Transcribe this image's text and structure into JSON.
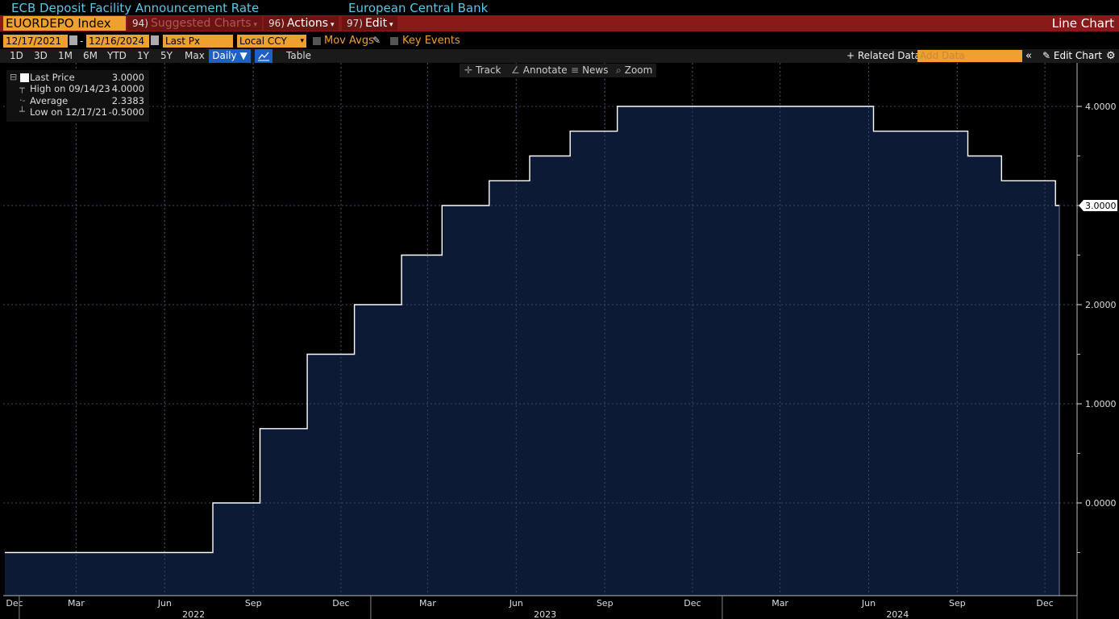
{
  "header": {
    "title": "ECB Deposit Facility Announcement Rate",
    "issuer": "European Central Bank"
  },
  "command_bar": {
    "ticker": "EUORDEPO Index",
    "suggested_num": "94)",
    "suggested_label": "Suggested Charts",
    "actions_num": "96)",
    "actions_label": "Actions",
    "edit_num": "97)",
    "edit_label": "Edit",
    "chart_type": "Line Chart",
    "colors": {
      "bar": "#8a1a1a",
      "accent": "#f0a030",
      "title": "#5cc6e6"
    }
  },
  "options": {
    "start_date": "12/17/2021",
    "end_date": "12/16/2024",
    "dash": "-",
    "field": "Last Px",
    "currency": "Local CCY",
    "mov_avgs": "Mov Avgs",
    "key_events": "Key Events"
  },
  "range_bar": {
    "ranges": [
      "1D",
      "3D",
      "1M",
      "6M",
      "YTD",
      "1Y",
      "5Y",
      "Max"
    ],
    "frequency": "Daily ▼",
    "table": "Table",
    "related": "+ Related Data",
    "add_data_placeholder": "Add Data",
    "collapse": "«",
    "edit_chart": "Edit Chart",
    "gear": "⚙"
  },
  "chart_toolbar": {
    "track": "Track",
    "annotate": "Annotate",
    "news": "News",
    "zoom": "Zoom"
  },
  "legend": {
    "last_price_label": "Last Price",
    "last_price_value": "3.0000",
    "high_label": "High on 09/14/23",
    "high_value": "4.0000",
    "average_label": "Average",
    "average_value": "2.3383",
    "low_label": "Low on 12/17/21",
    "low_value": "-0.5000"
  },
  "chart_data": {
    "type": "area",
    "title": "ECB Deposit Facility Announcement Rate",
    "step": true,
    "line_color": "#ffffff",
    "fill_color": "#0c1a35",
    "grid": true,
    "ylim": [
      -0.95,
      4.95
    ],
    "y_ticks": [
      0,
      1,
      2,
      3,
      4
    ],
    "y_tick_labels": [
      "0.0000",
      "1.0000",
      "2.0000",
      "3.0000",
      "4.0000"
    ],
    "last_value_label": "3.0000",
    "x_range": [
      "2021-12-17",
      "2024-12-16"
    ],
    "x_ticks": [
      {
        "date": "2021-12-01",
        "label": "Dec"
      },
      {
        "date": "2022-03-01",
        "label": "Mar"
      },
      {
        "date": "2022-06-01",
        "label": "Jun"
      },
      {
        "date": "2022-09-01",
        "label": "Sep"
      },
      {
        "date": "2022-12-01",
        "label": "Dec"
      },
      {
        "date": "2023-03-01",
        "label": "Mar"
      },
      {
        "date": "2023-06-01",
        "label": "Jun"
      },
      {
        "date": "2023-09-01",
        "label": "Sep"
      },
      {
        "date": "2023-12-01",
        "label": "Dec"
      },
      {
        "date": "2024-03-01",
        "label": "Mar"
      },
      {
        "date": "2024-06-01",
        "label": "Jun"
      },
      {
        "date": "2024-09-01",
        "label": "Sep"
      },
      {
        "date": "2024-12-01",
        "label": "Dec"
      }
    ],
    "year_labels": [
      {
        "date": "2022-07-01",
        "label": "2022"
      },
      {
        "date": "2023-07-01",
        "label": "2023"
      },
      {
        "date": "2024-07-01",
        "label": "2024"
      }
    ],
    "year_dividers": [
      "2022-01-01",
      "2023-01-01",
      "2024-01-01"
    ],
    "series": [
      {
        "x": [
          "2021-12-17",
          "2022-07-21",
          "2022-09-08",
          "2022-10-27",
          "2022-12-15",
          "2023-02-02",
          "2023-03-16",
          "2023-05-04",
          "2023-06-15",
          "2023-07-27",
          "2023-09-14",
          "2024-06-06",
          "2024-09-12",
          "2024-10-17",
          "2024-12-12",
          "2024-12-16"
        ],
        "y": [
          -0.5,
          0.0,
          0.75,
          1.5,
          2.0,
          2.5,
          3.0,
          3.25,
          3.5,
          3.75,
          4.0,
          3.75,
          3.5,
          3.25,
          3.0,
          3.0
        ]
      }
    ]
  }
}
